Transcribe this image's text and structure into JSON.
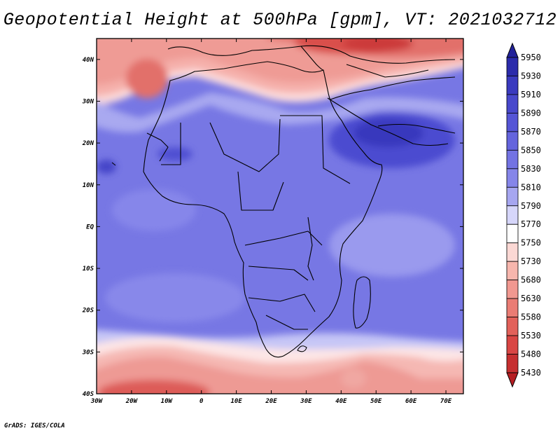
{
  "title": "Geopotential Height at 500hPa [gpm], VT: 2021032712",
  "credit": "GrADS: IGES/COLA",
  "map": {
    "lon_range": [
      -30,
      75
    ],
    "lat_range": [
      -40,
      45
    ],
    "lon_ticks": [
      {
        "lon": -30,
        "label": "30W"
      },
      {
        "lon": -20,
        "label": "20W"
      },
      {
        "lon": -10,
        "label": "10W"
      },
      {
        "lon": 0,
        "label": "0"
      },
      {
        "lon": 10,
        "label": "10E"
      },
      {
        "lon": 20,
        "label": "20E"
      },
      {
        "lon": 30,
        "label": "30E"
      },
      {
        "lon": 40,
        "label": "40E"
      },
      {
        "lon": 50,
        "label": "50E"
      },
      {
        "lon": 60,
        "label": "60E"
      },
      {
        "lon": 70,
        "label": "70E"
      }
    ],
    "lat_ticks": [
      {
        "lat": 40,
        "label": "40N"
      },
      {
        "lat": 30,
        "label": "30N"
      },
      {
        "lat": 20,
        "label": "20N"
      },
      {
        "lat": 10,
        "label": "10N"
      },
      {
        "lat": 0,
        "label": "EQ"
      },
      {
        "lat": -10,
        "label": "10S"
      },
      {
        "lat": -20,
        "label": "20S"
      },
      {
        "lat": -30,
        "label": "30S"
      },
      {
        "lat": -40,
        "label": "40S"
      }
    ]
  },
  "colorbar": {
    "labels": [
      "5950",
      "5930",
      "5910",
      "5890",
      "5870",
      "5850",
      "5830",
      "5810",
      "5790",
      "5770",
      "5750",
      "5730",
      "5680",
      "5630",
      "5580",
      "5530",
      "5480",
      "5430"
    ],
    "colors": [
      "#22229a",
      "#2b2bab",
      "#3a3abf",
      "#4848cc",
      "#5555d6",
      "#6464dd",
      "#7373e3",
      "#8585e9",
      "#a6a6f0",
      "#d6d6fa",
      "#ffffff",
      "#fbd8d4",
      "#f7b6ad",
      "#f19890",
      "#ea7c74",
      "#e2615a",
      "#d94644",
      "#c62f30",
      "#b51d22"
    ]
  },
  "chart_data": {
    "type": "heatmap",
    "variable": "Geopotential Height at 500hPa",
    "units": "gpm",
    "valid_time": "2021032712",
    "levels": [
      5430,
      5480,
      5530,
      5580,
      5630,
      5680,
      5730,
      5750,
      5770,
      5790,
      5810,
      5830,
      5850,
      5870,
      5890,
      5910,
      5930,
      5950
    ],
    "features": [
      {
        "desc": "ridge maximum over Arabian Peninsula",
        "lon": 48,
        "lat": 21,
        "value": 5900
      },
      {
        "desc": "low near Morocco / NE Atlantic",
        "lon": -14,
        "lat": 37,
        "value": 5630
      },
      {
        "desc": "trough over eastern Mediterranean / Turkey",
        "lon": 40,
        "lat": 42,
        "value": 5580
      },
      {
        "desc": "trough in South Atlantic",
        "lon": -12,
        "lat": -39,
        "value": 5580
      }
    ]
  }
}
